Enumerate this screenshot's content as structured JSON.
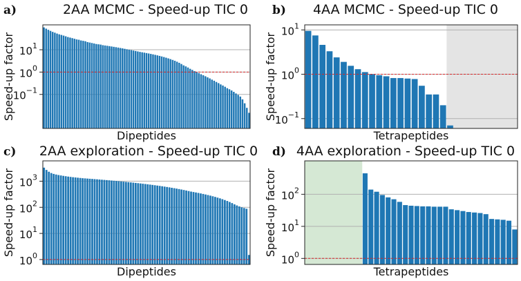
{
  "chart_data": [
    {
      "panel": "a)",
      "type": "bar",
      "title": "2AA MCMC - Speed-up TIC 0",
      "xlabel": "Dipeptides",
      "ylabel": "Speed-up factor",
      "yscale": "log",
      "ylim": [
        0.003,
        130
      ],
      "yticks": [
        {
          "value": 10,
          "label": "10^1"
        },
        {
          "value": 1,
          "label": "10^0"
        },
        {
          "value": 0.1,
          "label": "10^-1"
        }
      ],
      "reference_line": 1,
      "grid": "horizontal",
      "color": "#1f77b4",
      "values": [
        100,
        88,
        78,
        70,
        63,
        58,
        53,
        49,
        46,
        43,
        40,
        37,
        35,
        33,
        31,
        29,
        28,
        26,
        25,
        24,
        22,
        21,
        20,
        19,
        18,
        17.5,
        17,
        16,
        15.5,
        15,
        14.5,
        14,
        13.5,
        13,
        12.5,
        12,
        11.5,
        11,
        10.5,
        10,
        9.6,
        9.2,
        8.8,
        8.4,
        8,
        7.7,
        7.4,
        7.1,
        6.8,
        6.5,
        6.2,
        5.9,
        5.6,
        5.3,
        5,
        4.7,
        4.4,
        4.1,
        3.8,
        3.5,
        3.2,
        2.9,
        2.6,
        2.3,
        2.0,
        1.8,
        1.6,
        1.4,
        1.25,
        1.1,
        1.0,
        0.9,
        0.8,
        0.72,
        0.65,
        0.58,
        0.52,
        0.46,
        0.41,
        0.36,
        0.32,
        0.28,
        0.25,
        0.22,
        0.19,
        0.17,
        0.15,
        0.13,
        0.11,
        0.095,
        0.08,
        0.06,
        0.04,
        0.025,
        0.015
      ]
    },
    {
      "panel": "b)",
      "type": "bar",
      "title": "4AA MCMC - Speed-up TIC 0",
      "xlabel": "Tetrapeptides",
      "ylabel": "Speed-up factor",
      "yscale": "log",
      "ylim": [
        0.06,
        13
      ],
      "yticks": [
        {
          "value": 10,
          "label": "10^1"
        },
        {
          "value": 1,
          "label": "10^0"
        },
        {
          "value": 0.1,
          "label": "10^-1"
        }
      ],
      "reference_line": 1,
      "grid": "horizontal",
      "color": "#1f77b4",
      "shaded_region": {
        "from_category": 20,
        "to_category": 30,
        "color": "#e4e4e4"
      },
      "n_categories": 30,
      "values": [
        9.5,
        7.5,
        4.6,
        3.3,
        2.4,
        1.9,
        1.55,
        1.3,
        1.12,
        1.0,
        0.95,
        0.9,
        0.82,
        0.82,
        0.8,
        0.78,
        0.55,
        0.35,
        0.35,
        0.2,
        0.07
      ]
    },
    {
      "panel": "c)",
      "type": "bar",
      "title": "2AA exploration - Speed-up TIC 0",
      "xlabel": "Dipeptides",
      "ylabel": "Speed-up factor",
      "yscale": "log",
      "ylim": [
        0.65,
        6000
      ],
      "yticks": [
        {
          "value": 1000,
          "label": "10^3"
        },
        {
          "value": 100,
          "label": "10^2"
        },
        {
          "value": 10,
          "label": "10^1"
        },
        {
          "value": 1,
          "label": "10^0"
        }
      ],
      "reference_line": 1,
      "grid": "horizontal",
      "color": "#1f77b4",
      "values": [
        3300,
        2700,
        2300,
        2050,
        1900,
        1800,
        1720,
        1660,
        1600,
        1550,
        1500,
        1460,
        1420,
        1390,
        1360,
        1330,
        1300,
        1280,
        1260,
        1240,
        1220,
        1200,
        1180,
        1160,
        1140,
        1120,
        1100,
        1080,
        1060,
        1040,
        1020,
        1000,
        980,
        960,
        940,
        920,
        900,
        880,
        860,
        840,
        820,
        800,
        780,
        760,
        740,
        720,
        700,
        680,
        660,
        640,
        620,
        600,
        580,
        560,
        540,
        520,
        500,
        480,
        460,
        440,
        420,
        400,
        385,
        370,
        355,
        340,
        325,
        310,
        295,
        280,
        265,
        250,
        235,
        220,
        205,
        190,
        175,
        160,
        145,
        130,
        118,
        108,
        100,
        94,
        88,
        1.5
      ]
    },
    {
      "panel": "d)",
      "type": "bar",
      "title": "4AA exploration - Speed-up TIC 0",
      "xlabel": "Tetrapeptides",
      "ylabel": "Speed-up factor",
      "yscale": "log",
      "ylim": [
        0.65,
        1100
      ],
      "yticks": [
        {
          "value": 100,
          "label": "10^2"
        },
        {
          "value": 10,
          "label": "10^1"
        },
        {
          "value": 1,
          "label": "10^0"
        }
      ],
      "reference_line": 1,
      "grid": "horizontal",
      "color": "#1f77b4",
      "shaded_region": {
        "from_category": 0,
        "to_category": 10,
        "color": "#d5e8d4"
      },
      "n_categories": 37,
      "values": [
        null,
        null,
        null,
        null,
        null,
        null,
        null,
        null,
        null,
        null,
        450,
        140,
        120,
        95,
        80,
        70,
        58,
        46,
        44,
        43,
        42,
        42,
        41,
        41,
        41,
        34,
        32,
        30,
        28,
        27,
        26,
        24,
        17,
        16.5,
        16,
        15,
        8
      ]
    }
  ]
}
